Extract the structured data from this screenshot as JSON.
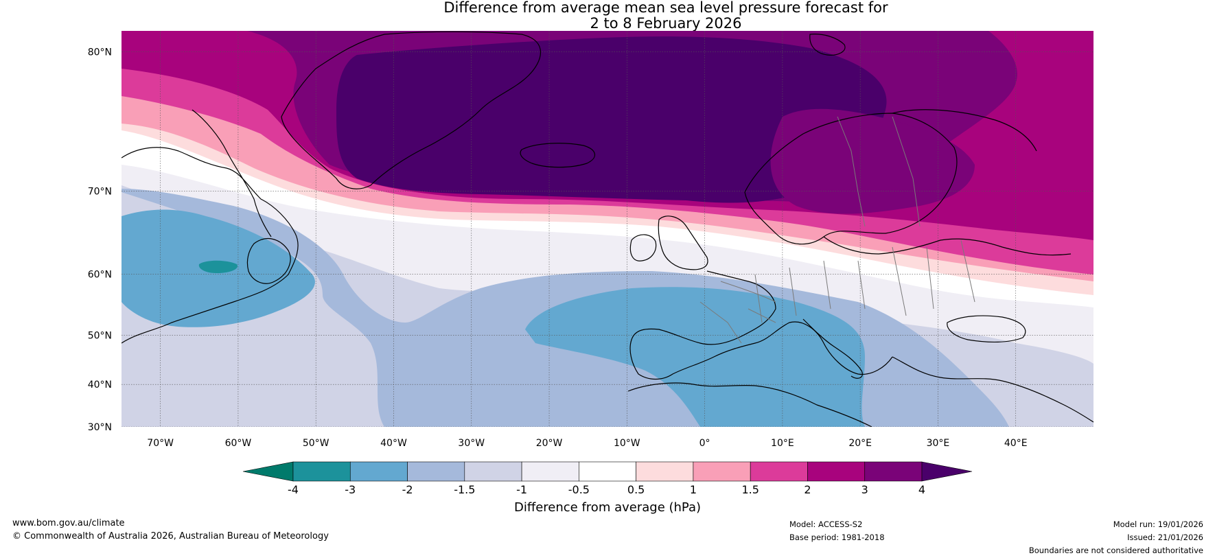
{
  "title": {
    "line1": "Difference from average mean sea level pressure forecast for",
    "line2": "2 to 8 February 2026"
  },
  "map": {
    "lat_labels": [
      "80°N",
      "70°N",
      "60°N",
      "50°N",
      "40°N",
      "30°N"
    ],
    "lat_values": [
      80,
      70,
      60,
      50,
      40,
      30
    ],
    "lon_labels": [
      "70°W",
      "60°W",
      "50°W",
      "40°W",
      "30°W",
      "20°W",
      "10°W",
      "0°",
      "10°E",
      "20°E",
      "30°E",
      "40°E"
    ],
    "lon_values": [
      -70,
      -60,
      -50,
      -40,
      -30,
      -20,
      -10,
      0,
      10,
      20,
      30,
      40
    ],
    "extent": {
      "lon_min": -75,
      "lon_max": 50,
      "lat_min": 30,
      "lat_max": 81
    }
  },
  "legend": {
    "label": "Difference from average (hPa)",
    "ticks": [
      "-4",
      "-3",
      "-2",
      "-1.5",
      "-1",
      "-0.5",
      "0.5",
      "1",
      "1.5",
      "2",
      "3",
      "4"
    ],
    "colors": [
      "#007a6b",
      "#1c929b",
      "#63a8d0",
      "#a5b9db",
      "#d0d3e6",
      "#f0eef5",
      "#ffffff",
      "#fddcdd",
      "#f99fb7",
      "#dc3b9a",
      "#a8037d",
      "#7a0378",
      "#4a006a"
    ]
  },
  "footer": {
    "site": "www.bom.gov.au/climate",
    "copyright": "© Commonwealth of Australia 2026, Australian Bureau of Meteorology",
    "model": "Model: ACCESS-S2",
    "base_period": "Base period: 1981-2018",
    "model_run": "Model run: 19/01/2026",
    "issued": "Issued: 21/01/2026",
    "disclaimer": "Boundaries are not considered authoritative"
  }
}
